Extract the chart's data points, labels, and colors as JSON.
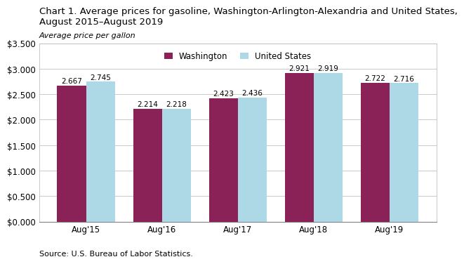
{
  "title_line1": "Chart 1. Average prices for gasoline, Washington-Arlington-Alexandria and United States,",
  "title_line2": "August 2015–August 2019",
  "subtitle": "Average price per gallon",
  "source": "Source: U.S. Bureau of Labor Statistics.",
  "categories": [
    "Aug'15",
    "Aug'16",
    "Aug'17",
    "Aug'18",
    "Aug'19"
  ],
  "washington_values": [
    2.667,
    2.214,
    2.423,
    2.921,
    2.722
  ],
  "us_values": [
    2.745,
    2.218,
    2.436,
    2.919,
    2.716
  ],
  "washington_color": "#8B2257",
  "us_color": "#ADD8E6",
  "washington_label": "Washington",
  "us_label": "United States",
  "ylim": [
    0,
    3.5
  ],
  "yticks": [
    0.0,
    0.5,
    1.0,
    1.5,
    2.0,
    2.5,
    3.0,
    3.5
  ],
  "bar_width": 0.38,
  "grid_color": "#C0C0C0",
  "background_color": "#FFFFFF",
  "title_fontsize": 9.5,
  "subtitle_fontsize": 8,
  "tick_fontsize": 8.5,
  "value_label_fontsize": 7.5,
  "legend_fontsize": 8.5,
  "source_fontsize": 8
}
